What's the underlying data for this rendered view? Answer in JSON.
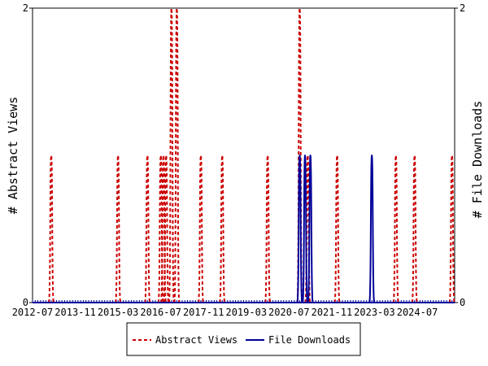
{
  "chart_data": {
    "type": "line",
    "x_tick_labels": [
      "2012-07",
      "2013-11",
      "2015-03",
      "2016-07",
      "2017-11",
      "2019-03",
      "2020-07",
      "2021-11",
      "2023-03",
      "2024-07"
    ],
    "x_range": [
      "2012-07",
      "2025-09"
    ],
    "ylabel_left": "# Abstract Views",
    "ylabel_right": "# File Downloads",
    "ylim": [
      0,
      2
    ],
    "y_tick_labels": [
      "0",
      "2"
    ],
    "legend_position": "bottom",
    "grid": false,
    "colors": {
      "abstract_views": "#cc0000",
      "file_downloads": "#000099"
    },
    "series": [
      {
        "name": "Abstract Views",
        "style": "dashed",
        "axis": "left",
        "points": [
          {
            "x": "2013-02",
            "y": 1
          },
          {
            "x": "2015-03",
            "y": 1
          },
          {
            "x": "2016-02",
            "y": 1
          },
          {
            "x": "2016-07",
            "y": 1
          },
          {
            "x": "2016-08",
            "y": 1
          },
          {
            "x": "2016-09",
            "y": 1
          },
          {
            "x": "2016-11",
            "y": 2
          },
          {
            "x": "2017-01",
            "y": 2
          },
          {
            "x": "2017-10",
            "y": 1
          },
          {
            "x": "2018-06",
            "y": 1
          },
          {
            "x": "2019-11",
            "y": 1
          },
          {
            "x": "2020-11",
            "y": 2
          },
          {
            "x": "2021-02",
            "y": 1
          },
          {
            "x": "2022-01",
            "y": 1
          },
          {
            "x": "2023-11",
            "y": 1
          },
          {
            "x": "2024-06",
            "y": 1
          },
          {
            "x": "2025-08",
            "y": 1
          }
        ]
      },
      {
        "name": "File Downloads",
        "style": "solid",
        "axis": "right",
        "points": [
          {
            "x": "2020-11",
            "y": 1
          },
          {
            "x": "2021-01",
            "y": 1
          },
          {
            "x": "2021-03",
            "y": 1
          },
          {
            "x": "2023-02",
            "y": 1
          }
        ]
      }
    ]
  }
}
